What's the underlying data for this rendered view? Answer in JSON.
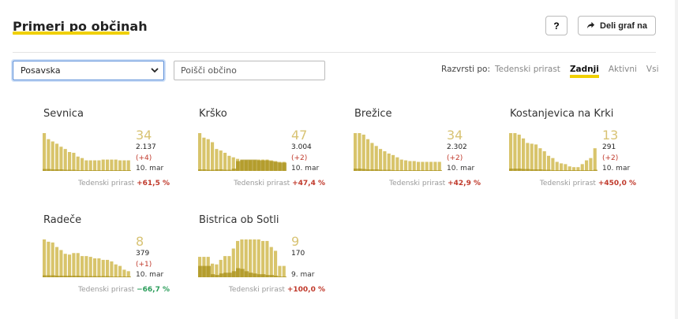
{
  "header": {
    "title": "Primeri po občinah",
    "help_label": "?",
    "share_label": "Deli graf na"
  },
  "filters": {
    "region_selected": "Posavska",
    "search_placeholder": "Poišči občino",
    "sort_label": "Razvrsti po:",
    "sort_options": [
      {
        "label": "Tedenski prirast",
        "active": false
      },
      {
        "label": "Zadnji",
        "active": true
      },
      {
        "label": "Aktivni",
        "active": false
      },
      {
        "label": "Vsi",
        "active": false
      }
    ]
  },
  "colors": {
    "accent": "#f0d000",
    "bar_light": "#d8c46b",
    "bar_dark": "#a89018",
    "positive": "#c0392b",
    "negative": "#2a9d5a"
  },
  "municipalities": [
    {
      "name": "Sevnica",
      "active": "34",
      "total": "2.137",
      "delta": "(+4)",
      "date": "10. mar",
      "growth_label": "Tedenski prirast",
      "growth_value": "+61,5 %",
      "growth_sign": "pos",
      "bars": [
        1.0,
        0.84,
        0.78,
        0.72,
        0.64,
        0.58,
        0.5,
        0.48,
        0.38,
        0.34,
        0.28,
        0.28,
        0.28,
        0.28,
        0.3,
        0.3,
        0.3,
        0.3,
        0.28,
        0.28,
        0.28
      ],
      "highlight": [
        0.05,
        0.05,
        0.04,
        0.04,
        0.04,
        0.03,
        0.03,
        0.03,
        0.02,
        0.02,
        0.02,
        0.02,
        0.02,
        0.02,
        0.02,
        0.02,
        0.02,
        0.02,
        0.02,
        0.02,
        0.02
      ]
    },
    {
      "name": "Krško",
      "active": "47",
      "total": "3.004",
      "delta": "(+2)",
      "date": "10. mar",
      "growth_label": "Tedenski prirast",
      "growth_value": "+47,4 %",
      "growth_sign": "pos",
      "bars": [
        1.0,
        0.88,
        0.84,
        0.76,
        0.58,
        0.54,
        0.48,
        0.4,
        0.36,
        0.32,
        0.28,
        0.28,
        0.28,
        0.28,
        0.3,
        0.3,
        0.3,
        0.28,
        0.26,
        0.24,
        0.24
      ],
      "highlight": [
        0.04,
        0.04,
        0.03,
        0.03,
        0.04,
        0.04,
        0.03,
        0.03,
        0.06,
        0.26,
        0.3,
        0.3,
        0.3,
        0.3,
        0.28,
        0.28,
        0.28,
        0.26,
        0.24,
        0.22,
        0.22
      ]
    },
    {
      "name": "Brežice",
      "active": "34",
      "total": "2.302",
      "delta": "(+2)",
      "date": "10. mar",
      "growth_label": "Tedenski prirast",
      "growth_value": "+42,9 %",
      "growth_sign": "pos",
      "bars": [
        1.0,
        1.0,
        0.96,
        0.84,
        0.74,
        0.66,
        0.58,
        0.52,
        0.46,
        0.42,
        0.36,
        0.3,
        0.28,
        0.26,
        0.26,
        0.24,
        0.24,
        0.24,
        0.24,
        0.24,
        0.24
      ],
      "highlight": [
        0.06,
        0.06,
        0.05,
        0.04,
        0.04,
        0.04,
        0.03,
        0.03,
        0.03,
        0.02,
        0.02,
        0.02,
        0.02,
        0.02,
        0.02,
        0.02,
        0.02,
        0.02,
        0.02,
        0.02,
        0.02
      ]
    },
    {
      "name": "Kostanjevica na Krki",
      "active": "13",
      "total": "291",
      "delta": "(+2)",
      "date": "10. mar",
      "growth_label": "Tedenski prirast",
      "growth_value": "+450,0 %",
      "growth_sign": "pos",
      "bars": [
        1.0,
        1.0,
        0.96,
        0.86,
        0.74,
        0.72,
        0.7,
        0.6,
        0.52,
        0.4,
        0.34,
        0.24,
        0.2,
        0.18,
        0.12,
        0.1,
        0.1,
        0.18,
        0.28,
        0.34,
        0.6
      ],
      "highlight": [
        0.06,
        0.06,
        0.06,
        0.05,
        0.05,
        0.04,
        0.04,
        0.04,
        0.03,
        0.03,
        0.02,
        0.02,
        0.02,
        0.02,
        0.02,
        0.02,
        0.02,
        0.02,
        0.02,
        0.02,
        0.03
      ]
    },
    {
      "name": "Radeče",
      "active": "8",
      "total": "379",
      "delta": "(+1)",
      "date": "10. mar",
      "growth_label": "Tedenski prirast",
      "growth_value": "−66,7 %",
      "growth_sign": "neg",
      "bars": [
        1.0,
        0.94,
        0.92,
        0.8,
        0.72,
        0.62,
        0.6,
        0.64,
        0.64,
        0.56,
        0.56,
        0.54,
        0.5,
        0.5,
        0.46,
        0.46,
        0.42,
        0.34,
        0.3,
        0.2,
        0.16
      ],
      "highlight": [
        0.05,
        0.05,
        0.05,
        0.04,
        0.04,
        0.04,
        0.04,
        0.04,
        0.04,
        0.03,
        0.03,
        0.03,
        0.03,
        0.03,
        0.03,
        0.03,
        0.02,
        0.02,
        0.02,
        0.02,
        0.02
      ]
    },
    {
      "name": "Bistrica ob Sotli",
      "active": "9",
      "total": "170",
      "delta": "",
      "date": "9. mar",
      "growth_label": "Tedenski prirast",
      "growth_value": "+100,0 %",
      "growth_sign": "pos",
      "bars": [
        0.54,
        0.54,
        0.54,
        0.36,
        0.34,
        0.46,
        0.56,
        0.56,
        0.76,
        0.96,
        1.0,
        1.0,
        1.0,
        1.0,
        1.0,
        0.96,
        0.96,
        0.8,
        0.7,
        0.3,
        0.3
      ],
      "highlight": [
        0.3,
        0.3,
        0.3,
        0.08,
        0.06,
        0.1,
        0.12,
        0.12,
        0.16,
        0.24,
        0.22,
        0.16,
        0.12,
        0.1,
        0.08,
        0.08,
        0.06,
        0.06,
        0.04,
        0.02,
        0.02
      ]
    }
  ]
}
